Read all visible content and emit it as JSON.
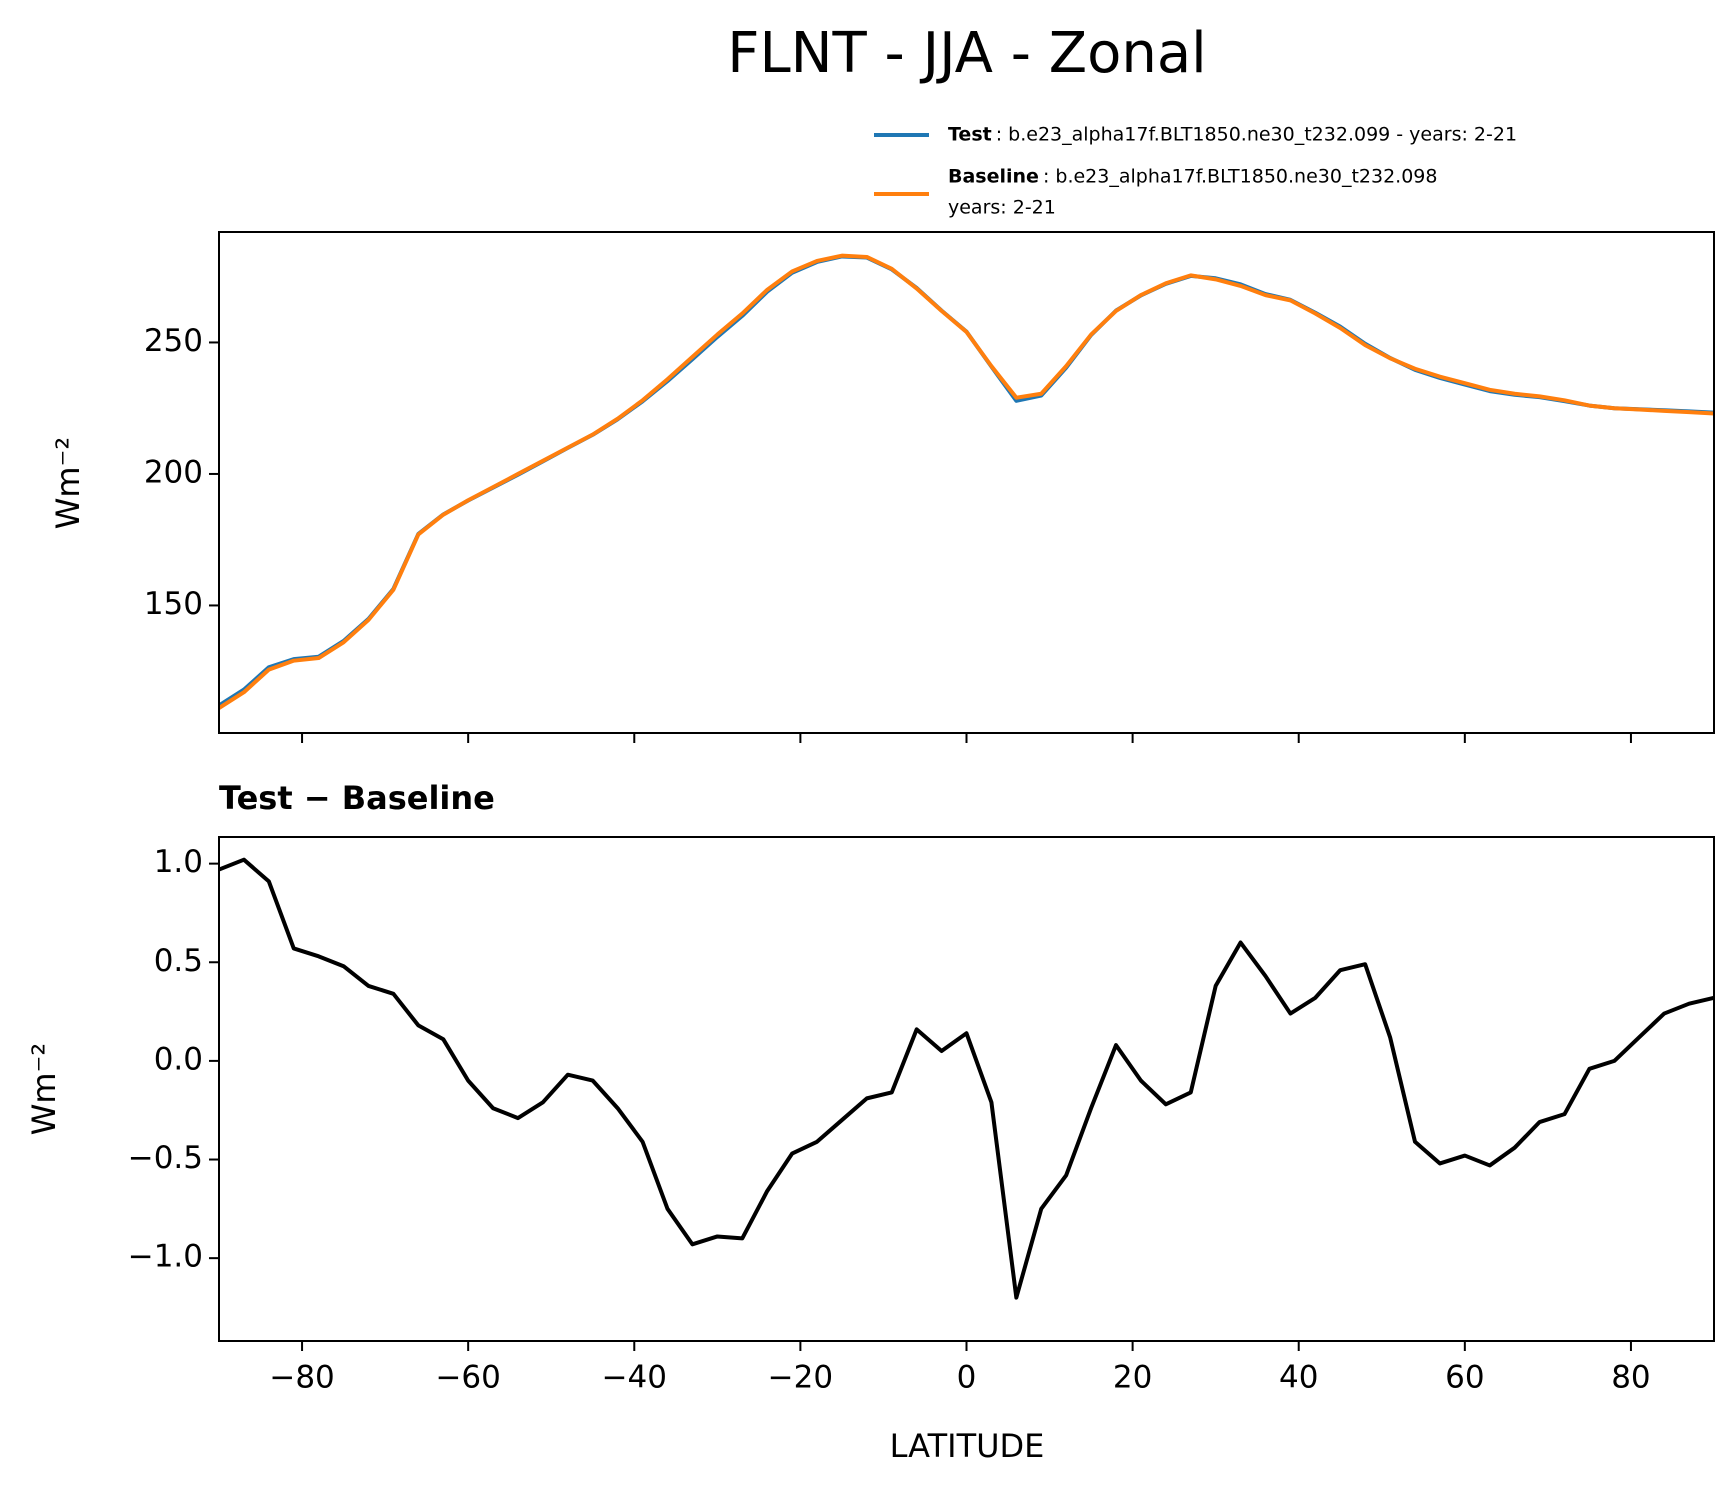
{
  "chart_data": [
    {
      "type": "line",
      "title": "FLNT - JJA - Zonal",
      "ylabel": "Wm⁻²",
      "x": [
        -90,
        -87,
        -84,
        -81,
        -78,
        -75,
        -72,
        -69,
        -66,
        -63,
        -60,
        -57,
        -54,
        -51,
        -48,
        -45,
        -42,
        -39,
        -36,
        -33,
        -30,
        -27,
        -24,
        -21,
        -18,
        -15,
        -12,
        -9,
        -6,
        -3,
        0,
        3,
        6,
        9,
        12,
        15,
        18,
        21,
        24,
        27,
        30,
        33,
        36,
        39,
        42,
        45,
        48,
        51,
        54,
        57,
        60,
        63,
        66,
        69,
        72,
        75,
        78,
        81,
        84,
        87,
        90
      ],
      "series": [
        {
          "name": "Test",
          "label": ": b.e23_alpha17f.BLT1850.ne30_t232.099 - years: 2-21",
          "color": "#1f77b4",
          "values": [
            112.0,
            118.0,
            126.5,
            129.6,
            130.5,
            136.5,
            144.9,
            156.3,
            177.2,
            184.6,
            189.9,
            194.8,
            199.7,
            204.8,
            209.9,
            214.9,
            220.8,
            227.6,
            235.3,
            243.6,
            252.1,
            260.1,
            269.3,
            276.5,
            280.6,
            282.7,
            282.3,
            277.8,
            270.7,
            262.1,
            254.1,
            240.8,
            227.8,
            229.8,
            240.4,
            252.8,
            262.1,
            267.9,
            272.3,
            275.3,
            274.4,
            272.1,
            268.4,
            266.2,
            261.3,
            256.0,
            249.5,
            244.1,
            239.6,
            236.5,
            234.0,
            231.5,
            230.1,
            229.2,
            227.7,
            226.0,
            225.0,
            224.6,
            224.2,
            223.8,
            223.3
          ]
        },
        {
          "name": "Baseline",
          "label": ": b.e23_alpha17f.BLT1850.ne30_t232.098",
          "label2": "years: 2-21",
          "color": "#ff7f0e",
          "values": [
            111,
            117,
            125.6,
            129,
            130,
            136,
            144.5,
            156,
            177,
            184.5,
            190,
            195,
            200,
            205,
            210,
            215,
            221,
            228,
            236,
            244.5,
            253,
            261,
            270,
            277,
            281,
            283,
            282.5,
            278,
            270.5,
            262,
            254,
            241,
            229,
            230.5,
            241,
            253,
            262,
            268,
            272.5,
            275.5,
            274,
            271.5,
            268,
            266,
            261,
            255.5,
            249,
            244,
            240,
            237,
            234.5,
            232,
            230.5,
            229.5,
            228,
            226,
            225,
            224.5,
            224,
            223.5,
            223
          ]
        }
      ],
      "xlim": [
        -90,
        90
      ],
      "xticks": [
        -80,
        -60,
        -40,
        -20,
        0,
        20,
        40,
        60,
        80
      ],
      "ylim": [
        101.5,
        292
      ],
      "yticks": [
        150,
        200,
        250
      ]
    },
    {
      "type": "line",
      "title": "Test − Baseline",
      "ylabel": "Wm⁻²",
      "xlabel": "LATITUDE",
      "x": [
        -90,
        -87,
        -84,
        -81,
        -78,
        -75,
        -72,
        -69,
        -66,
        -63,
        -60,
        -57,
        -54,
        -51,
        -48,
        -45,
        -42,
        -39,
        -36,
        -33,
        -30,
        -27,
        -24,
        -21,
        -18,
        -15,
        -12,
        -9,
        -6,
        -3,
        0,
        3,
        6,
        9,
        12,
        15,
        18,
        21,
        24,
        27,
        30,
        33,
        36,
        39,
        42,
        45,
        48,
        51,
        54,
        57,
        60,
        63,
        66,
        69,
        72,
        75,
        78,
        81,
        84,
        87,
        90
      ],
      "series": [
        {
          "color": "#000000",
          "values": [
            0.97,
            1.02,
            0.91,
            0.57,
            0.53,
            0.48,
            0.38,
            0.34,
            0.18,
            0.11,
            -0.1,
            -0.24,
            -0.29,
            -0.21,
            -0.07,
            -0.1,
            -0.24,
            -0.41,
            -0.75,
            -0.93,
            -0.89,
            -0.9,
            -0.66,
            -0.47,
            -0.41,
            -0.3,
            -0.19,
            -0.16,
            0.16,
            0.05,
            0.14,
            -0.21,
            -1.2,
            -0.75,
            -0.58,
            -0.24,
            0.08,
            -0.1,
            -0.22,
            -0.16,
            0.38,
            0.6,
            0.43,
            0.24,
            0.32,
            0.46,
            0.49,
            0.12,
            -0.41,
            -0.52,
            -0.48,
            -0.53,
            -0.44,
            -0.31,
            -0.27,
            -0.04,
            0.0,
            0.12,
            0.24,
            0.29,
            0.32
          ]
        }
      ],
      "xlim": [
        -90,
        90
      ],
      "xticks": [
        {
          "value": -80,
          "label": "−80"
        },
        {
          "value": -60,
          "label": "−60"
        },
        {
          "value": -40,
          "label": "−40"
        },
        {
          "value": -20,
          "label": "−20"
        },
        0,
        20,
        40,
        60,
        80
      ],
      "ylim": [
        -1.42,
        1.135
      ],
      "yticks": [
        {
          "value": -1.0,
          "label": "−1.0"
        },
        {
          "value": -0.5,
          "label": "−0.5"
        },
        {
          "value": 0.0,
          "label": "0.0"
        },
        {
          "value": 0.5,
          "label": "0.5"
        },
        {
          "value": 1.0,
          "label": "1.0"
        }
      ]
    }
  ]
}
